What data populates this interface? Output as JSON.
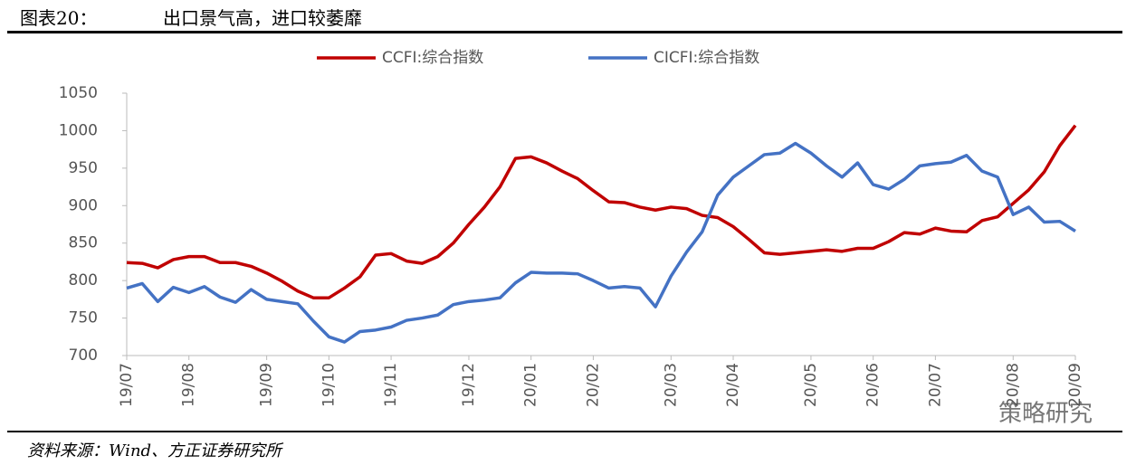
{
  "header": {
    "label": "图表20：",
    "title": "出口景气高，进口较萎靡"
  },
  "chart_data": {
    "type": "line",
    "categories": [
      "19/07",
      null,
      null,
      null,
      "19/08",
      null,
      null,
      null,
      null,
      "19/09",
      null,
      null,
      null,
      "19/10",
      null,
      null,
      null,
      "19/11",
      null,
      null,
      null,
      null,
      "19/12",
      null,
      null,
      null,
      "20/01",
      null,
      null,
      null,
      "20/02",
      null,
      null,
      null,
      null,
      "20/03",
      null,
      null,
      null,
      "20/04",
      null,
      null,
      null,
      null,
      "20/05",
      null,
      null,
      null,
      "20/06",
      null,
      null,
      null,
      "20/07",
      null,
      null,
      null,
      null,
      "20/08",
      null,
      null,
      null,
      "20/09"
    ],
    "series": [
      {
        "name": "CCFI:综合指数",
        "color": "#c00000",
        "values": [
          824,
          823,
          817,
          828,
          832,
          832,
          824,
          824,
          819,
          810,
          799,
          786,
          777,
          777,
          790,
          805,
          834,
          836,
          826,
          823,
          832,
          850,
          875,
          898,
          925,
          963,
          965,
          957,
          946,
          936,
          920,
          905,
          904,
          898,
          894,
          898,
          896,
          887,
          884,
          872,
          855,
          837,
          835,
          837,
          839,
          841,
          839,
          843,
          843,
          852,
          864,
          862,
          870,
          866,
          865,
          880,
          885,
          903,
          921,
          945,
          980,
          1007
        ]
      },
      {
        "name": "CICFI:综合指数",
        "color": "#4472c4",
        "values": [
          790,
          796,
          772,
          791,
          784,
          792,
          778,
          771,
          788,
          775,
          772,
          769,
          746,
          725,
          718,
          732,
          734,
          738,
          747,
          750,
          754,
          768,
          772,
          774,
          777,
          797,
          811,
          810,
          810,
          809,
          800,
          790,
          792,
          790,
          765,
          806,
          838,
          865,
          914,
          938,
          953,
          968,
          970,
          983,
          970,
          953,
          938,
          957,
          928,
          922,
          935,
          953,
          956,
          958,
          967,
          946,
          938,
          888,
          898,
          878,
          879,
          866
        ]
      }
    ],
    "ylim": [
      700,
      1050
    ],
    "yticks": [
      700,
      750,
      800,
      850,
      900,
      950,
      1000,
      1050
    ],
    "grid": false,
    "legend": "top"
  },
  "source": "资料来源：Wind、方正证券研究所",
  "watermark": "策略研究"
}
